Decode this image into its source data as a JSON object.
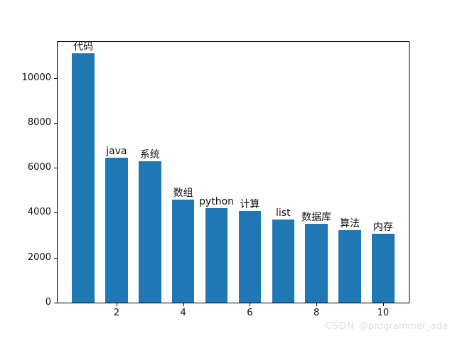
{
  "watermark": {
    "brand": "CSDN",
    "handle": "@programmer_ada"
  },
  "chart_data": {
    "type": "bar",
    "title": "",
    "xlabel": "",
    "ylabel": "",
    "x": [
      1,
      2,
      3,
      4,
      5,
      6,
      7,
      8,
      9,
      10
    ],
    "values": [
      11100,
      6440,
      6290,
      4590,
      4210,
      4090,
      3710,
      3520,
      3210,
      3080
    ],
    "bar_labels": [
      "代码",
      "java",
      "系统",
      "数组",
      "python",
      "计算",
      "list",
      "数据库",
      "算法",
      "内存"
    ],
    "bar_color": "#1f77b4",
    "label_color": "#111111",
    "xlim": [
      0.23,
      10.77
    ],
    "ylim": [
      0,
      11600
    ],
    "yticks": [
      0,
      2000,
      4000,
      6000,
      8000,
      10000
    ],
    "xticks": [
      2,
      4,
      6,
      8,
      10
    ],
    "bar_width_units": 0.67,
    "grid": false,
    "legend": null
  }
}
